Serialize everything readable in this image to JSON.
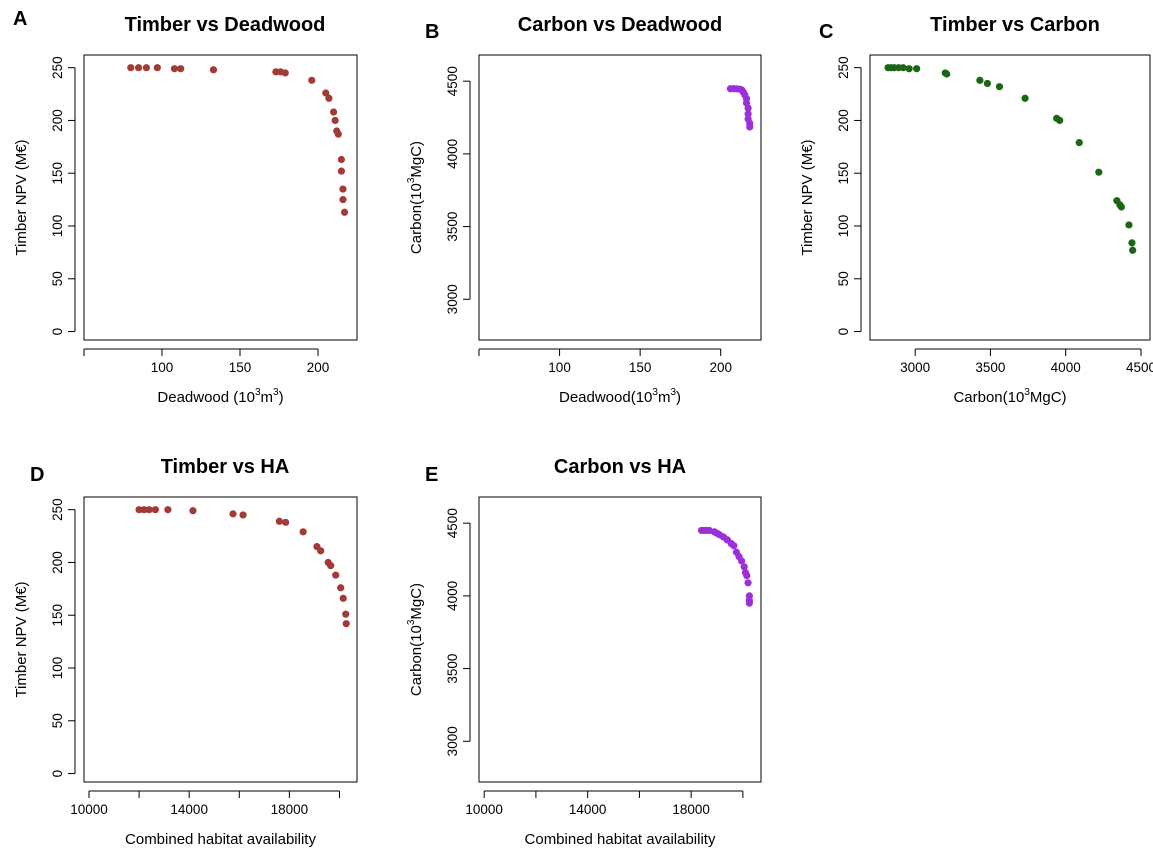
{
  "chart_data": [
    {
      "panel": "A",
      "type": "scatter",
      "title": "Timber vs Deadwood",
      "xlabel": {
        "pre": "Deadwood (10",
        "sup1": "3",
        "mid": "m",
        "sup2": "3",
        "post": ")"
      },
      "ylabel": {
        "pre": "Timber NPV (M€)"
      },
      "xlim": [
        50,
        225
      ],
      "ylim": [
        -8,
        262
      ],
      "xticks": [
        50,
        100,
        150,
        200
      ],
      "xtick_labels": [
        "",
        "100",
        "150",
        "200"
      ],
      "yticks": [
        0,
        50,
        100,
        150,
        200,
        250
      ],
      "ytick_labels": [
        "0",
        "50",
        "100",
        "150",
        "200",
        "250"
      ],
      "color": "#a23a36",
      "points": [
        [
          80,
          250
        ],
        [
          85,
          250
        ],
        [
          90,
          250
        ],
        [
          97,
          250
        ],
        [
          108,
          249
        ],
        [
          112,
          249
        ],
        [
          133,
          248
        ],
        [
          173,
          246
        ],
        [
          176,
          246
        ],
        [
          179,
          245
        ],
        [
          196,
          238
        ],
        [
          205,
          226
        ],
        [
          207,
          221
        ],
        [
          210,
          208
        ],
        [
          211,
          200
        ],
        [
          212,
          190
        ],
        [
          213,
          187
        ],
        [
          215,
          163
        ],
        [
          215,
          152
        ],
        [
          216,
          135
        ],
        [
          216,
          125
        ],
        [
          217,
          113
        ]
      ]
    },
    {
      "panel": "B",
      "type": "scatter",
      "title": "Carbon vs Deadwood",
      "xlabel": {
        "pre": "Deadwood(10",
        "sup1": "3",
        "mid": "m",
        "sup2": "3",
        "post": ")"
      },
      "ylabel": {
        "pre": "Carbon(10",
        "sup1": "3",
        "post": "MgC)"
      },
      "xlim": [
        50,
        225
      ],
      "ylim": [
        2720,
        4680
      ],
      "xticks": [
        50,
        100,
        150,
        200
      ],
      "xtick_labels": [
        "",
        "100",
        "150",
        "200"
      ],
      "yticks": [
        3000,
        3500,
        4000,
        4500
      ],
      "ytick_labels": [
        "3000",
        "3500",
        "4000",
        "4500"
      ],
      "color": "#9b30d9",
      "points": [
        [
          206,
          4448
        ],
        [
          208,
          4448
        ],
        [
          210,
          4447
        ],
        [
          212,
          4445
        ],
        [
          213,
          4440
        ],
        [
          214,
          4425
        ],
        [
          215,
          4405
        ],
        [
          216,
          4380
        ],
        [
          216,
          4350
        ],
        [
          217,
          4315
        ],
        [
          217,
          4275
        ],
        [
          217,
          4240
        ],
        [
          218,
          4210
        ],
        [
          218,
          4185
        ]
      ]
    },
    {
      "panel": "C",
      "type": "scatter",
      "title": "Timber vs Carbon",
      "xlabel": {
        "pre": "Carbon(10",
        "sup1": "3",
        "post": "MgC)"
      },
      "ylabel": {
        "pre": "Timber NPV (M€)"
      },
      "xlim": [
        2700,
        4560
      ],
      "ylim": [
        -8,
        262
      ],
      "xticks": [
        3000,
        3500,
        4000,
        4500
      ],
      "xtick_labels": [
        "3000",
        "3500",
        "4000",
        "4500"
      ],
      "yticks": [
        0,
        50,
        100,
        150,
        200,
        250
      ],
      "ytick_labels": [
        "0",
        "50",
        "100",
        "150",
        "200",
        "250"
      ],
      "color": "#1a6614",
      "points": [
        [
          2820,
          250
        ],
        [
          2840,
          250
        ],
        [
          2860,
          250
        ],
        [
          2890,
          250
        ],
        [
          2920,
          250
        ],
        [
          2960,
          249
        ],
        [
          3010,
          249
        ],
        [
          3200,
          245
        ],
        [
          3210,
          244
        ],
        [
          3430,
          238
        ],
        [
          3480,
          235
        ],
        [
          3560,
          232
        ],
        [
          3730,
          221
        ],
        [
          3940,
          202
        ],
        [
          3960,
          200
        ],
        [
          4090,
          179
        ],
        [
          4220,
          151
        ],
        [
          4340,
          124
        ],
        [
          4360,
          120
        ],
        [
          4370,
          118
        ],
        [
          4420,
          101
        ],
        [
          4440,
          84
        ],
        [
          4445,
          77
        ]
      ]
    },
    {
      "panel": "D",
      "type": "scatter",
      "title": "Timber vs HA",
      "xlabel": {
        "pre": "Combined habitat availability"
      },
      "ylabel": {
        "pre": "Timber NPV (M€)"
      },
      "xlim": [
        9800,
        20700
      ],
      "ylim": [
        -8,
        262
      ],
      "xticks": [
        10000,
        12000,
        14000,
        16000,
        18000,
        20000
      ],
      "xtick_labels": [
        "10000",
        "",
        "14000",
        "",
        "18000",
        ""
      ],
      "yticks": [
        0,
        50,
        100,
        150,
        200,
        250
      ],
      "ytick_labels": [
        "0",
        "50",
        "100",
        "150",
        "200",
        "250"
      ],
      "color": "#a23a36",
      "points": [
        [
          12000,
          250
        ],
        [
          12200,
          250
        ],
        [
          12400,
          250
        ],
        [
          12650,
          250
        ],
        [
          13150,
          250
        ],
        [
          14150,
          249
        ],
        [
          15750,
          246
        ],
        [
          16150,
          245
        ],
        [
          17600,
          239
        ],
        [
          17850,
          238
        ],
        [
          18550,
          229
        ],
        [
          19100,
          215
        ],
        [
          19250,
          211
        ],
        [
          19550,
          200
        ],
        [
          19650,
          197
        ],
        [
          19850,
          188
        ],
        [
          20050,
          176
        ],
        [
          20150,
          166
        ],
        [
          20250,
          151
        ],
        [
          20270,
          142
        ]
      ]
    },
    {
      "panel": "E",
      "type": "scatter",
      "title": "Carbon vs HA",
      "xlabel": {
        "pre": "Combined habitat availability"
      },
      "ylabel": {
        "pre": "Carbon(10",
        "sup1": "3",
        "post": "MgC)"
      },
      "xlim": [
        9800,
        20700
      ],
      "ylim": [
        2720,
        4680
      ],
      "xticks": [
        10000,
        12000,
        14000,
        16000,
        18000,
        20000
      ],
      "xtick_labels": [
        "10000",
        "",
        "14000",
        "",
        "18000",
        ""
      ],
      "yticks": [
        3000,
        3500,
        4000,
        4500
      ],
      "ytick_labels": [
        "3000",
        "3500",
        "4000",
        "4500"
      ],
      "color": "#9b30d9",
      "points": [
        [
          18400,
          4450
        ],
        [
          18500,
          4450
        ],
        [
          18600,
          4450
        ],
        [
          18700,
          4450
        ],
        [
          18900,
          4440
        ],
        [
          19000,
          4430
        ],
        [
          19100,
          4420
        ],
        [
          19250,
          4405
        ],
        [
          19400,
          4385
        ],
        [
          19550,
          4360
        ],
        [
          19650,
          4345
        ],
        [
          19750,
          4300
        ],
        [
          19850,
          4270
        ],
        [
          19950,
          4240
        ],
        [
          20050,
          4200
        ],
        [
          20100,
          4160
        ],
        [
          20150,
          4140
        ],
        [
          20200,
          4090
        ],
        [
          20250,
          4000
        ],
        [
          20250,
          3970
        ],
        [
          20250,
          3950
        ]
      ]
    }
  ]
}
